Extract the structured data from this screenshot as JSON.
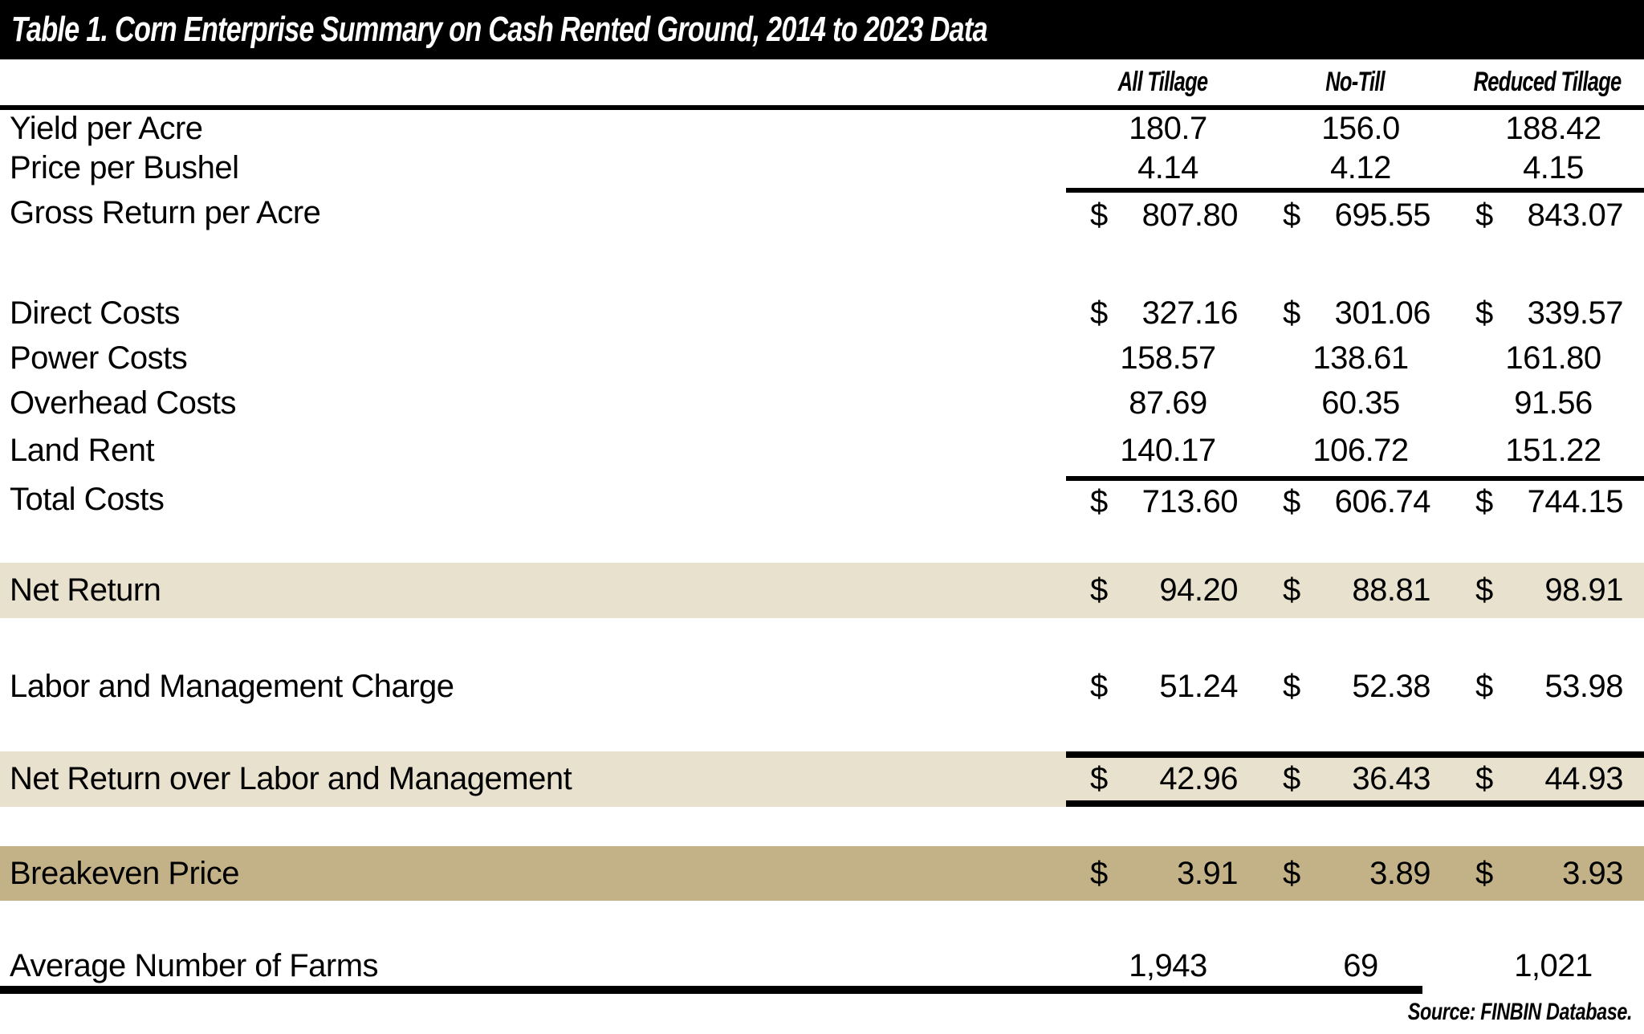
{
  "title": "Table 1. Corn Enterprise Summary on Cash Rented Ground, 2014 to 2023 Data",
  "columns": [
    "All Tillage",
    "No-Till",
    "Reduced Tillage"
  ],
  "currency_symbol": "$",
  "source_note": "Source: FINBIN Database.",
  "colors": {
    "title_bar_bg": "#000000",
    "title_text": "#ffffff",
    "highlight_light": "#e8e1cd",
    "highlight_dark": "#c3b287"
  },
  "rows": [
    {
      "label": "Yield per Acre",
      "dollar": false,
      "highlight": null,
      "values": [
        "180.7",
        "156.0",
        "188.42"
      ]
    },
    {
      "label": "Price per Bushel",
      "dollar": false,
      "highlight": null,
      "values": [
        "4.14",
        "4.12",
        "4.15"
      ]
    },
    {
      "label": "Gross Return per Acre",
      "dollar": true,
      "highlight": null,
      "values": [
        "807.80",
        "695.55",
        "843.07"
      ]
    },
    {
      "label": "Direct Costs",
      "dollar": true,
      "highlight": null,
      "values": [
        "327.16",
        "301.06",
        "339.57"
      ]
    },
    {
      "label": "Power Costs",
      "dollar": false,
      "highlight": null,
      "values": [
        "158.57",
        "138.61",
        "161.80"
      ]
    },
    {
      "label": "Overhead Costs",
      "dollar": false,
      "highlight": null,
      "values": [
        "87.69",
        "60.35",
        "91.56"
      ]
    },
    {
      "label": "Land Rent",
      "dollar": false,
      "highlight": null,
      "values": [
        "140.17",
        "106.72",
        "151.22"
      ]
    },
    {
      "label": "Total Costs",
      "dollar": true,
      "highlight": null,
      "values": [
        "713.60",
        "606.74",
        "744.15"
      ]
    },
    {
      "label": "Net Return",
      "dollar": true,
      "highlight": "light",
      "values": [
        "94.20",
        "88.81",
        "98.91"
      ]
    },
    {
      "label": "Labor and Management Charge",
      "dollar": true,
      "highlight": null,
      "values": [
        "51.24",
        "52.38",
        "53.98"
      ]
    },
    {
      "label": "Net Return over Labor and Management",
      "dollar": true,
      "highlight": "light",
      "values": [
        "42.96",
        "36.43",
        "44.93"
      ]
    },
    {
      "label": "Breakeven Price",
      "dollar": true,
      "highlight": "dark",
      "values": [
        "3.91",
        "3.89",
        "3.93"
      ]
    },
    {
      "label": "Average Number of Farms",
      "dollar": false,
      "highlight": null,
      "values": [
        "1,943",
        "69",
        "1,021"
      ]
    }
  ]
}
